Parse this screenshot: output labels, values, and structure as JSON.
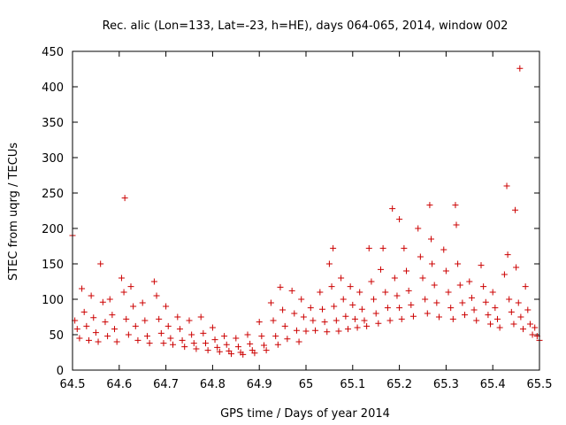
{
  "chart_data": {
    "type": "scatter",
    "title": "Rec. alic (Lon=133, Lat=-23, h=HE), days 064-065, 2014, window 002",
    "xlabel": "GPS time / Days of year 2014",
    "ylabel": "STEC from uqrg / TECUs",
    "xlim": [
      64.5,
      65.5
    ],
    "ylim": [
      0,
      450
    ],
    "xticks": [
      "64.5",
      "64.6",
      "64.7",
      "64.8",
      "64.9",
      "65",
      "65.1",
      "65.2",
      "65.3",
      "65.4",
      "65.5"
    ],
    "yticks": [
      "0",
      "50",
      "100",
      "150",
      "200",
      "250",
      "300",
      "350",
      "400",
      "450"
    ],
    "grid": false,
    "legend": "none",
    "marker": "+",
    "marker_color": "#cc0000",
    "series": [
      {
        "points": [
          [
            64.5,
            190
          ],
          [
            64.505,
            70
          ],
          [
            64.51,
            58
          ],
          [
            64.515,
            45
          ],
          [
            64.52,
            115
          ],
          [
            64.525,
            82
          ],
          [
            64.53,
            62
          ],
          [
            64.535,
            42
          ],
          [
            64.54,
            105
          ],
          [
            64.545,
            74
          ],
          [
            64.55,
            53
          ],
          [
            64.555,
            40
          ],
          [
            64.56,
            150
          ],
          [
            64.565,
            96
          ],
          [
            64.57,
            68
          ],
          [
            64.575,
            48
          ],
          [
            64.58,
            100
          ],
          [
            64.585,
            78
          ],
          [
            64.59,
            58
          ],
          [
            64.595,
            40
          ],
          [
            64.605,
            130
          ],
          [
            64.61,
            110
          ],
          [
            64.615,
            72
          ],
          [
            64.62,
            50
          ],
          [
            64.612,
            243
          ],
          [
            64.625,
            118
          ],
          [
            64.63,
            90
          ],
          [
            64.635,
            62
          ],
          [
            64.64,
            42
          ],
          [
            64.65,
            95
          ],
          [
            64.655,
            70
          ],
          [
            64.66,
            48
          ],
          [
            64.665,
            38
          ],
          [
            64.675,
            125
          ],
          [
            64.68,
            105
          ],
          [
            64.685,
            72
          ],
          [
            64.69,
            52
          ],
          [
            64.695,
            38
          ],
          [
            64.7,
            90
          ],
          [
            64.705,
            62
          ],
          [
            64.71,
            45
          ],
          [
            64.715,
            36
          ],
          [
            64.725,
            75
          ],
          [
            64.73,
            58
          ],
          [
            64.735,
            42
          ],
          [
            64.74,
            33
          ],
          [
            64.75,
            70
          ],
          [
            64.755,
            50
          ],
          [
            64.76,
            38
          ],
          [
            64.765,
            30
          ],
          [
            64.775,
            75
          ],
          [
            64.78,
            52
          ],
          [
            64.785,
            38
          ],
          [
            64.79,
            28
          ],
          [
            64.8,
            60
          ],
          [
            64.805,
            43
          ],
          [
            64.81,
            32
          ],
          [
            64.815,
            26
          ],
          [
            64.825,
            48
          ],
          [
            64.83,
            36
          ],
          [
            64.835,
            27
          ],
          [
            64.84,
            23
          ],
          [
            64.85,
            45
          ],
          [
            64.855,
            33
          ],
          [
            64.86,
            25
          ],
          [
            64.865,
            22
          ],
          [
            64.875,
            50
          ],
          [
            64.88,
            37
          ],
          [
            64.885,
            28
          ],
          [
            64.89,
            24
          ],
          [
            64.9,
            68
          ],
          [
            64.905,
            48
          ],
          [
            64.91,
            35
          ],
          [
            64.915,
            28
          ],
          [
            64.925,
            95
          ],
          [
            64.93,
            70
          ],
          [
            64.935,
            48
          ],
          [
            64.94,
            36
          ],
          [
            64.945,
            117
          ],
          [
            64.95,
            85
          ],
          [
            64.955,
            62
          ],
          [
            64.96,
            44
          ],
          [
            64.97,
            112
          ],
          [
            64.975,
            80
          ],
          [
            64.98,
            56
          ],
          [
            64.985,
            40
          ],
          [
            64.99,
            100
          ],
          [
            64.995,
            75
          ],
          [
            65.0,
            55
          ],
          [
            65.01,
            88
          ],
          [
            65.015,
            70
          ],
          [
            65.02,
            56
          ],
          [
            65.03,
            110
          ],
          [
            65.035,
            86
          ],
          [
            65.04,
            68
          ],
          [
            65.045,
            54
          ],
          [
            65.05,
            150
          ],
          [
            65.055,
            118
          ],
          [
            65.06,
            90
          ],
          [
            65.065,
            70
          ],
          [
            65.07,
            55
          ],
          [
            65.058,
            172
          ],
          [
            65.075,
            130
          ],
          [
            65.08,
            100
          ],
          [
            65.085,
            76
          ],
          [
            65.09,
            58
          ],
          [
            65.095,
            118
          ],
          [
            65.1,
            92
          ],
          [
            65.105,
            72
          ],
          [
            65.11,
            60
          ],
          [
            65.115,
            110
          ],
          [
            65.12,
            86
          ],
          [
            65.125,
            70
          ],
          [
            65.13,
            62
          ],
          [
            65.135,
            172
          ],
          [
            65.14,
            125
          ],
          [
            65.145,
            100
          ],
          [
            65.15,
            80
          ],
          [
            65.155,
            66
          ],
          [
            65.16,
            142
          ],
          [
            65.165,
            172
          ],
          [
            65.17,
            110
          ],
          [
            65.175,
            88
          ],
          [
            65.18,
            70
          ],
          [
            65.185,
            228
          ],
          [
            65.19,
            130
          ],
          [
            65.195,
            105
          ],
          [
            65.2,
            88
          ],
          [
            65.205,
            72
          ],
          [
            65.2,
            213
          ],
          [
            65.21,
            172
          ],
          [
            65.215,
            140
          ],
          [
            65.22,
            112
          ],
          [
            65.225,
            92
          ],
          [
            65.23,
            76
          ],
          [
            65.24,
            200
          ],
          [
            65.245,
            160
          ],
          [
            65.25,
            130
          ],
          [
            65.255,
            100
          ],
          [
            65.26,
            80
          ],
          [
            65.265,
            233
          ],
          [
            65.268,
            185
          ],
          [
            65.27,
            150
          ],
          [
            65.275,
            120
          ],
          [
            65.28,
            95
          ],
          [
            65.285,
            75
          ],
          [
            65.295,
            170
          ],
          [
            65.3,
            140
          ],
          [
            65.305,
            110
          ],
          [
            65.31,
            88
          ],
          [
            65.315,
            72
          ],
          [
            65.32,
            233
          ],
          [
            65.322,
            205
          ],
          [
            65.325,
            150
          ],
          [
            65.33,
            120
          ],
          [
            65.335,
            95
          ],
          [
            65.34,
            78
          ],
          [
            65.35,
            125
          ],
          [
            65.355,
            102
          ],
          [
            65.36,
            85
          ],
          [
            65.365,
            70
          ],
          [
            65.375,
            148
          ],
          [
            65.38,
            118
          ],
          [
            65.385,
            96
          ],
          [
            65.39,
            78
          ],
          [
            65.395,
            65
          ],
          [
            65.4,
            110
          ],
          [
            65.405,
            88
          ],
          [
            65.41,
            72
          ],
          [
            65.415,
            60
          ],
          [
            65.425,
            135
          ],
          [
            65.43,
            260
          ],
          [
            65.432,
            163
          ],
          [
            65.435,
            100
          ],
          [
            65.44,
            82
          ],
          [
            65.445,
            65
          ],
          [
            65.448,
            226
          ],
          [
            65.45,
            145
          ],
          [
            65.455,
            95
          ],
          [
            65.46,
            75
          ],
          [
            65.465,
            58
          ],
          [
            65.458,
            426
          ],
          [
            65.47,
            118
          ],
          [
            65.475,
            85
          ],
          [
            65.48,
            65
          ],
          [
            65.485,
            50
          ],
          [
            65.49,
            60
          ],
          [
            65.495,
            48
          ],
          [
            65.5,
            42
          ]
        ]
      }
    ]
  }
}
